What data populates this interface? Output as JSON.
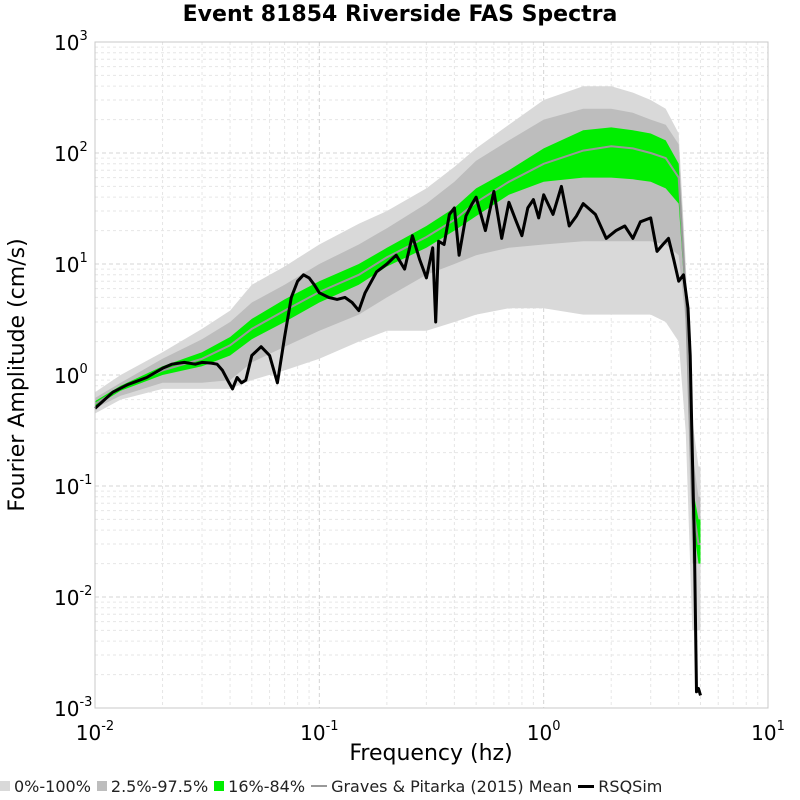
{
  "chart_data": {
    "type": "area",
    "title": "Event 81854 Riverside FAS Spectra",
    "xlabel": "Frequency (hz)",
    "ylabel": "Fourier Amplitude (cm/s)",
    "x_scale": "log",
    "y_scale": "log",
    "xlim": [
      0.01,
      10
    ],
    "ylim": [
      0.001,
      1000
    ],
    "grid": true,
    "x_ticks": [
      {
        "base": "10",
        "exp": "-2",
        "value": 0.01
      },
      {
        "base": "10",
        "exp": "-1",
        "value": 0.1
      },
      {
        "base": "10",
        "exp": "0",
        "value": 1
      },
      {
        "base": "10",
        "exp": "1",
        "value": 10
      }
    ],
    "y_ticks": [
      {
        "base": "10",
        "exp": "-3",
        "value": 0.001
      },
      {
        "base": "10",
        "exp": "-2",
        "value": 0.01
      },
      {
        "base": "10",
        "exp": "-1",
        "value": 0.1
      },
      {
        "base": "10",
        "exp": "0",
        "value": 1
      },
      {
        "base": "10",
        "exp": "1",
        "value": 10
      },
      {
        "base": "10",
        "exp": "2",
        "value": 100
      },
      {
        "base": "10",
        "exp": "3",
        "value": 1000
      }
    ],
    "x": [
      0.01,
      0.013,
      0.02,
      0.03,
      0.04,
      0.05,
      0.07,
      0.1,
      0.15,
      0.2,
      0.3,
      0.4,
      0.5,
      0.7,
      1.0,
      1.5,
      2.0,
      2.5,
      3.0,
      3.5,
      4.0,
      4.3,
      4.6,
      4.9,
      5.0
    ],
    "series": [
      {
        "name": "0%-100%",
        "color": "#d9d9d9",
        "kind": "band",
        "lower": [
          0.45,
          0.6,
          0.75,
          0.75,
          0.75,
          0.9,
          1.1,
          1.4,
          2.0,
          2.5,
          2.5,
          3.0,
          3.5,
          4.0,
          4.0,
          3.5,
          3.5,
          3.5,
          3.5,
          3.0,
          2.0,
          0.3,
          0.005,
          0.005,
          0.005
        ],
        "upper": [
          0.7,
          1.0,
          1.6,
          2.6,
          3.8,
          6.5,
          9.5,
          15,
          23,
          30,
          48,
          75,
          110,
          180,
          300,
          400,
          400,
          350,
          300,
          250,
          150,
          10,
          0.4,
          0.15,
          0.15
        ]
      },
      {
        "name": "2.5%-97.5%",
        "color": "#bdbdbd",
        "kind": "band",
        "lower": [
          0.5,
          0.65,
          0.85,
          0.85,
          0.9,
          1.3,
          1.8,
          2.5,
          3.5,
          5.0,
          8.0,
          10,
          12,
          14,
          15,
          16,
          16,
          16,
          16,
          15,
          12,
          3.0,
          0.02,
          0.02,
          0.02
        ],
        "upper": [
          0.62,
          0.85,
          1.4,
          2.1,
          3.0,
          4.5,
          6.5,
          10,
          15,
          21,
          35,
          55,
          85,
          130,
          200,
          250,
          250,
          230,
          200,
          180,
          120,
          8.0,
          0.2,
          0.08,
          0.08
        ]
      },
      {
        "name": "16%-84%",
        "color": "#00ee00",
        "kind": "band",
        "lower": [
          0.52,
          0.72,
          1.0,
          1.2,
          1.5,
          2.1,
          3.0,
          4.5,
          6.5,
          9.5,
          14,
          20,
          27,
          42,
          55,
          60,
          60,
          58,
          55,
          48,
          35,
          4.0,
          0.05,
          0.02,
          0.02
        ],
        "upper": [
          0.58,
          0.8,
          1.2,
          1.6,
          2.2,
          3.2,
          4.8,
          7.0,
          10,
          14,
          22,
          32,
          48,
          70,
          110,
          160,
          170,
          160,
          150,
          130,
          80,
          6.0,
          0.1,
          0.05,
          0.05
        ]
      },
      {
        "name": "Graves & Pitarka (2015) Mean",
        "color": "#999999",
        "kind": "line",
        "values": [
          0.55,
          0.76,
          1.1,
          1.4,
          1.85,
          2.6,
          3.8,
          5.6,
          8.0,
          11.5,
          17.5,
          25,
          36,
          55,
          80,
          105,
          115,
          110,
          100,
          90,
          60,
          5.0,
          0.07,
          0.03,
          0.03
        ]
      }
    ],
    "rsqsim": {
      "name": "RSQSim",
      "color": "#000000",
      "x": [
        0.01,
        0.012,
        0.014,
        0.017,
        0.02,
        0.022,
        0.025,
        0.028,
        0.03,
        0.033,
        0.035,
        0.037,
        0.039,
        0.041,
        0.043,
        0.045,
        0.047,
        0.05,
        0.055,
        0.06,
        0.065,
        0.07,
        0.075,
        0.08,
        0.085,
        0.09,
        0.095,
        0.1,
        0.11,
        0.12,
        0.13,
        0.14,
        0.15,
        0.16,
        0.18,
        0.2,
        0.22,
        0.24,
        0.26,
        0.28,
        0.3,
        0.32,
        0.33,
        0.34,
        0.36,
        0.38,
        0.4,
        0.42,
        0.45,
        0.48,
        0.5,
        0.55,
        0.6,
        0.65,
        0.7,
        0.75,
        0.8,
        0.85,
        0.9,
        0.95,
        1.0,
        1.1,
        1.2,
        1.3,
        1.4,
        1.5,
        1.7,
        1.9,
        2.1,
        2.3,
        2.5,
        2.7,
        3.0,
        3.2,
        3.4,
        3.6,
        3.8,
        4.0,
        4.2,
        4.4,
        4.5,
        4.6,
        4.7,
        4.8,
        4.9,
        5.0
      ],
      "values": [
        0.5,
        0.7,
        0.82,
        0.95,
        1.15,
        1.25,
        1.3,
        1.25,
        1.3,
        1.28,
        1.25,
        1.1,
        0.9,
        0.75,
        0.95,
        0.85,
        0.9,
        1.5,
        1.8,
        1.5,
        0.85,
        2.2,
        5.0,
        7.0,
        8.0,
        7.5,
        6.5,
        5.5,
        5.0,
        4.8,
        5.0,
        4.5,
        3.8,
        5.5,
        8.5,
        10.0,
        12.0,
        9.0,
        18.0,
        11.0,
        7.5,
        14.0,
        3.0,
        16.0,
        15.0,
        28.0,
        32.0,
        12.0,
        27.0,
        35.0,
        40.0,
        20.0,
        45.0,
        17.0,
        36.0,
        25.0,
        18.0,
        32.0,
        38.0,
        26.0,
        42.0,
        28.0,
        50.0,
        22.0,
        27.0,
        35.0,
        28.0,
        17.0,
        20.0,
        22.0,
        17.0,
        24.0,
        26.0,
        13.0,
        15.0,
        17.0,
        11.0,
        7.0,
        8.0,
        4.0,
        1.5,
        0.2,
        0.03,
        0.0014,
        0.0015,
        0.0013
      ]
    },
    "legend": {
      "placement": "bottom",
      "items": [
        {
          "label": "0%-100%",
          "color": "#d9d9d9",
          "kind": "box"
        },
        {
          "label": "2.5%-97.5%",
          "color": "#bdbdbd",
          "kind": "box"
        },
        {
          "label": "16%-84%",
          "color": "#00ee00",
          "kind": "box"
        },
        {
          "label": "Graves & Pitarka (2015) Mean",
          "color": "#999999",
          "kind": "line"
        },
        {
          "label": "RSQSim",
          "color": "#000000",
          "kind": "line"
        }
      ]
    }
  }
}
